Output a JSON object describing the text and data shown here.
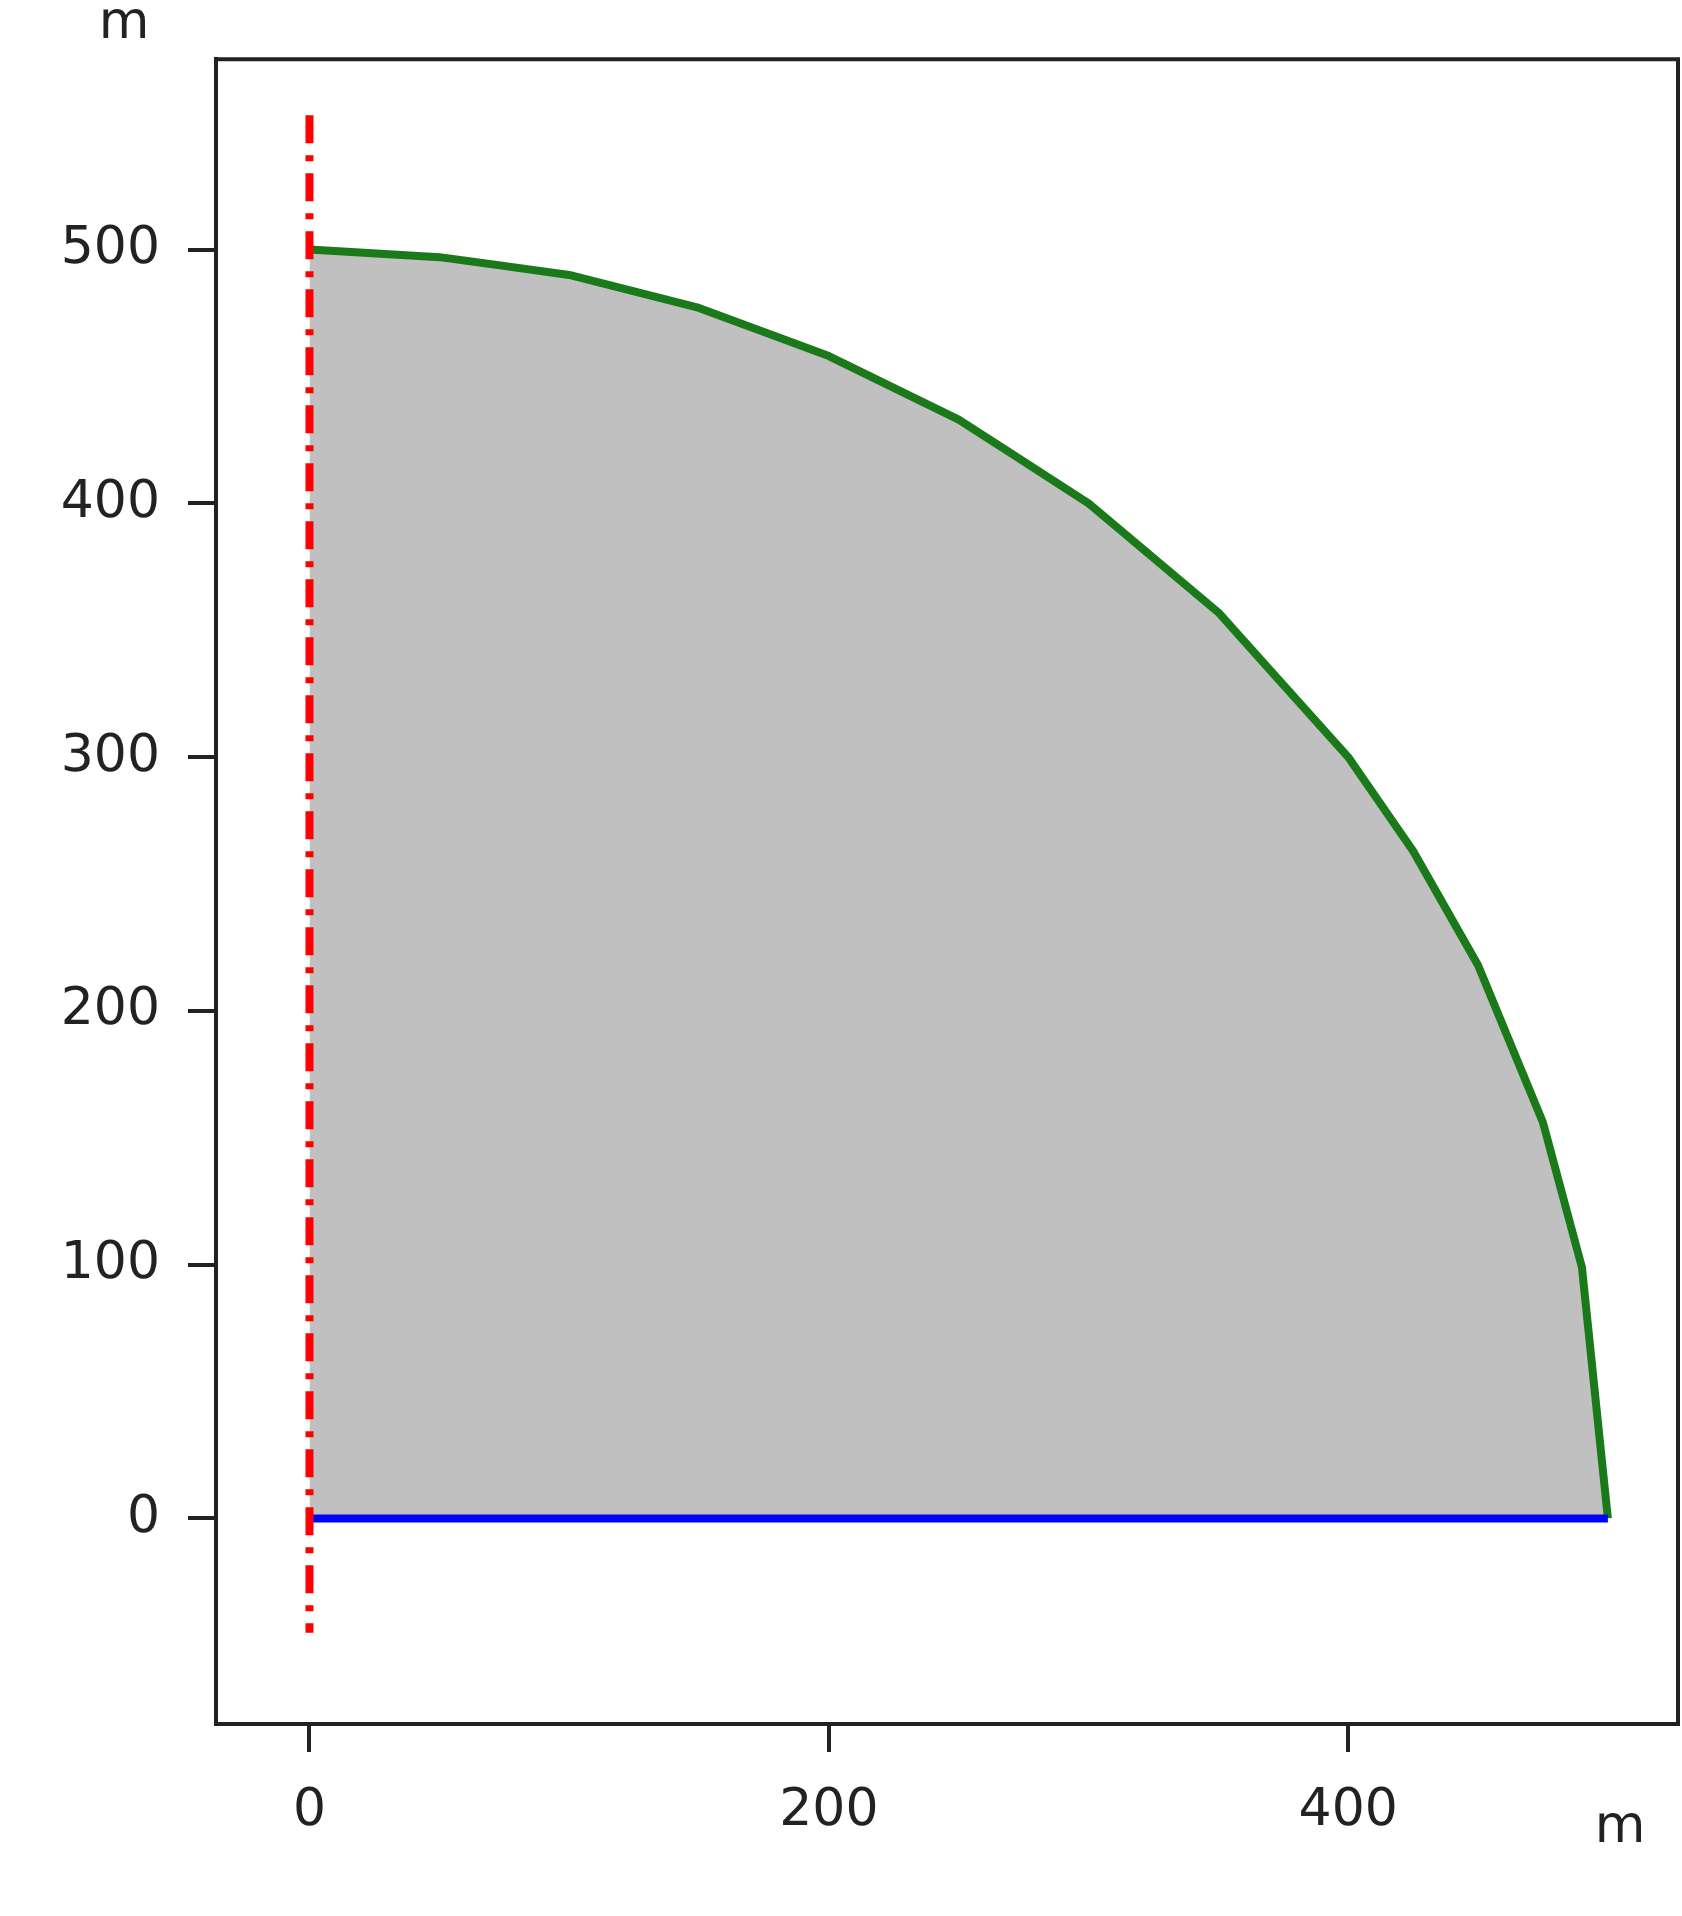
{
  "chart_data": {
    "type": "area",
    "xlabel": "m",
    "ylabel": "m",
    "xlim": [
      -36,
      527
    ],
    "ylim": [
      -81,
      575
    ],
    "xticks": [
      0,
      200,
      400
    ],
    "yticks": [
      0,
      100,
      200,
      300,
      400,
      500
    ],
    "grid": false,
    "legend": false,
    "marker": "none",
    "series": [
      {
        "type": "area",
        "color": "#1a7a1a",
        "x": [
          0,
          50,
          100,
          150,
          200,
          250,
          300,
          350,
          400,
          425,
          450,
          475,
          490,
          500
        ],
        "values": [
          500,
          497,
          490,
          477,
          458,
          433,
          400,
          357,
          300,
          263,
          218,
          156,
          99,
          0
        ]
      },
      {
        "type": "line",
        "color": "#0000ff",
        "x": [
          0,
          500
        ],
        "values": [
          0,
          0
        ]
      }
    ],
    "ref_lines": [
      {
        "axis": "x",
        "value": 0,
        "color": "#ff0000",
        "line_style": "dashed"
      }
    ]
  }
}
